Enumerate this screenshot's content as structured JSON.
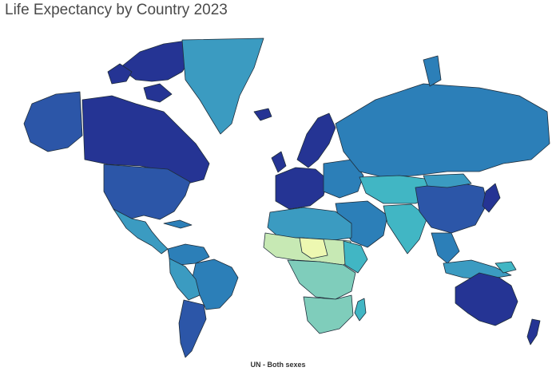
{
  "map": {
    "title": "Life Expectancy by Country 2023",
    "caption": "UN - Both sexes",
    "projection": "mercator",
    "colors": {
      "very_high": "#253494",
      "high": "#2c56a8",
      "upper_mid": "#2c7fb8",
      "mid": "#3b9bc1",
      "lower_mid": "#41b6c4",
      "low": "#7fcdbb",
      "very_low": "#c7e9b4",
      "lowest": "#edf8b1"
    }
  }
}
